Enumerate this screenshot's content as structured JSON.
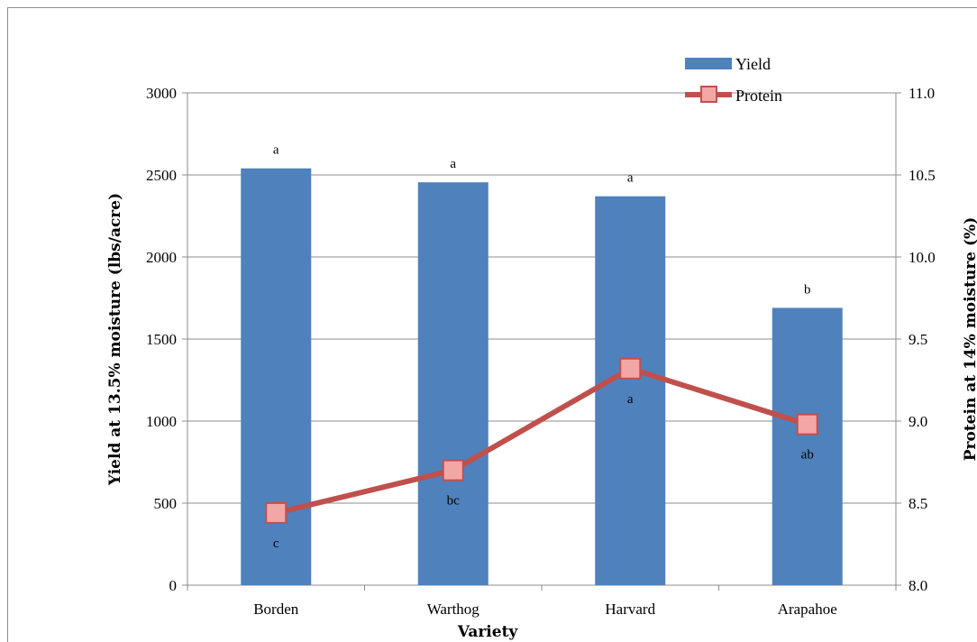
{
  "chart_data": {
    "type": "bar",
    "categories": [
      "Borden",
      "Warthog",
      "Harvard",
      "Arapahoe"
    ],
    "xlabel": "Variety",
    "ylabel": "Yield at 13.5% moisture (lbs/acre)",
    "y2label": "Protein at 14% moisture (%)",
    "ylim": [
      0,
      3000
    ],
    "y2lim": [
      8.0,
      11.0
    ],
    "yticks": [
      "0",
      "500",
      "1000",
      "1500",
      "2000",
      "2500",
      "3000"
    ],
    "y2ticks": [
      "8.0",
      "8.5",
      "9.0",
      "9.5",
      "10.0",
      "10.5",
      "11.0"
    ],
    "grid": true,
    "legend_position": "top-right",
    "series": [
      {
        "name": "Yield",
        "type": "bar",
        "axis": "left",
        "color": "#4f81bd",
        "values": [
          2540,
          2455,
          2370,
          1690
        ],
        "letters": [
          "a",
          "a",
          "a",
          "b"
        ]
      },
      {
        "name": "Protein",
        "type": "line",
        "axis": "right",
        "color": "#c0504d",
        "marker_color": "#f2a7a6",
        "values": [
          8.44,
          8.7,
          9.32,
          8.98
        ],
        "letters": [
          "c",
          "bc",
          "a",
          "ab"
        ]
      }
    ]
  }
}
